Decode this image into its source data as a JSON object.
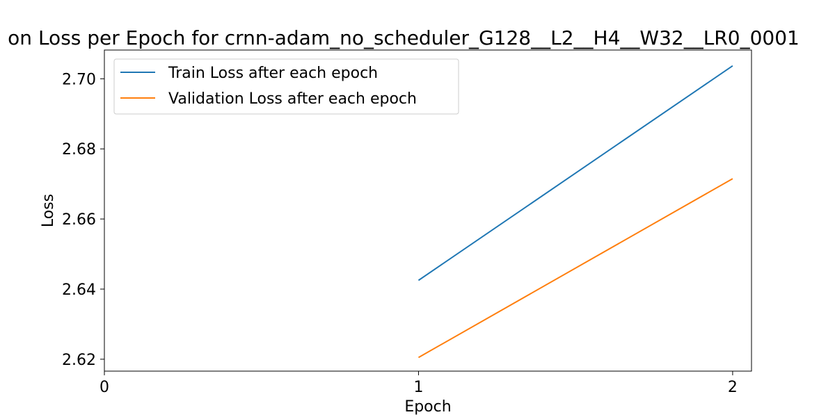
{
  "chart_data": {
    "type": "line",
    "title": "on Loss per Epoch for crnn-adam_no_scheduler_G128__L2__H4__W32__LR0_0001",
    "xlabel": "Epoch",
    "ylabel": "Loss",
    "xlim": [
      0,
      2.06
    ],
    "ylim": [
      2.6166,
      2.7082
    ],
    "x_ticks": [
      0,
      1,
      2
    ],
    "x_tick_labels": [
      "0",
      "1",
      "2"
    ],
    "y_ticks": [
      2.62,
      2.64,
      2.66,
      2.68,
      2.7
    ],
    "y_tick_labels": [
      "2.62",
      "2.64",
      "2.66",
      "2.68",
      "2.70"
    ],
    "grid": false,
    "legend_position": "upper-left",
    "series": [
      {
        "name": "Train Loss after each epoch",
        "color": "#1f77b4",
        "x": [
          1,
          2
        ],
        "y": [
          2.6425,
          2.7037
        ]
      },
      {
        "name": "Validation Loss after each epoch",
        "color": "#ff7f0e",
        "x": [
          1,
          2
        ],
        "y": [
          2.6205,
          2.6715
        ]
      }
    ]
  }
}
